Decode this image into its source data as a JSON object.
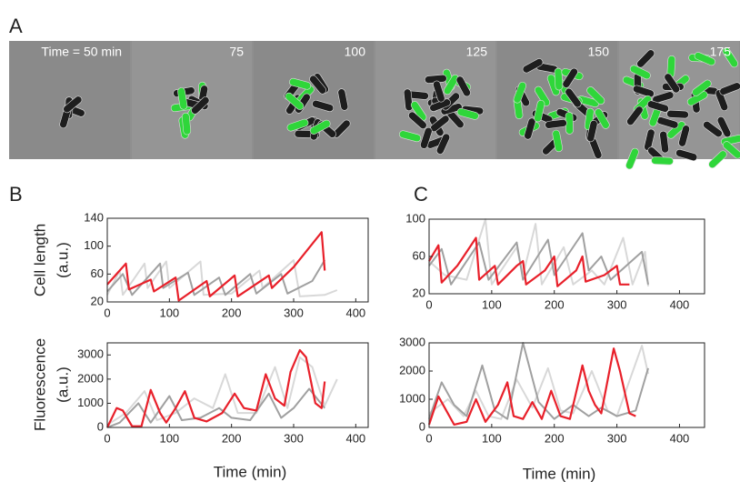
{
  "panel_labels": [
    "A",
    "B",
    "C"
  ],
  "panel_a": {
    "frames": [
      "Time = 50 min",
      "75",
      "100",
      "125",
      "150",
      "175"
    ]
  },
  "chart_data": [
    {
      "type": "line",
      "ylabel": [
        "Cell length",
        "(a.u.)"
      ],
      "xlim": [
        0,
        420
      ],
      "xticks": [
        0,
        100,
        200,
        300,
        400
      ],
      "ylim": [
        20,
        140
      ],
      "yticks": [
        20,
        60,
        100,
        140
      ],
      "series": [
        {
          "color": "#d8d8d8",
          "x": [
            0,
            20,
            25,
            60,
            65,
            95,
            100,
            150,
            155,
            200,
            245,
            250,
            300,
            310,
            350,
            370
          ],
          "values": [
            30,
            65,
            30,
            75,
            40,
            78,
            40,
            78,
            30,
            32,
            65,
            40,
            80,
            28,
            30,
            37
          ]
        },
        {
          "color": "#a0a0a0",
          "x": [
            0,
            25,
            40,
            85,
            90,
            130,
            140,
            180,
            190,
            230,
            240,
            280,
            290,
            330,
            350
          ],
          "values": [
            35,
            60,
            30,
            75,
            40,
            62,
            30,
            55,
            30,
            60,
            32,
            60,
            32,
            50,
            80
          ]
        },
        {
          "color": "#e8202a",
          "x": [
            0,
            30,
            35,
            70,
            75,
            110,
            115,
            160,
            165,
            205,
            210,
            260,
            265,
            300,
            345,
            350
          ],
          "values": [
            45,
            75,
            38,
            52,
            35,
            55,
            22,
            50,
            28,
            58,
            28,
            58,
            40,
            70,
            120,
            65
          ]
        }
      ]
    },
    {
      "type": "line",
      "ylabel": [
        "Fluorescence",
        "(a.u.)"
      ],
      "xlabel": "Time (min)",
      "xlim": [
        0,
        420
      ],
      "xticks": [
        0,
        100,
        200,
        300,
        400
      ],
      "ylim": [
        0,
        3500
      ],
      "yticks": [
        0,
        1000,
        2000,
        3000
      ],
      "series": [
        {
          "color": "#d8d8d8",
          "x": [
            0,
            30,
            60,
            80,
            110,
            140,
            170,
            190,
            210,
            240,
            270,
            290,
            310,
            330,
            350,
            370
          ],
          "values": [
            100,
            600,
            1500,
            300,
            600,
            1200,
            800,
            2200,
            600,
            600,
            2500,
            800,
            2900,
            2500,
            900,
            2000
          ]
        },
        {
          "color": "#a0a0a0",
          "x": [
            0,
            20,
            50,
            70,
            100,
            120,
            150,
            180,
            200,
            230,
            260,
            280,
            300,
            325,
            350
          ],
          "values": [
            0,
            200,
            1000,
            200,
            1300,
            300,
            400,
            800,
            400,
            300,
            1400,
            400,
            800,
            1600,
            800
          ]
        },
        {
          "color": "#e8202a",
          "x": [
            0,
            15,
            25,
            40,
            55,
            70,
            85,
            95,
            110,
            125,
            140,
            160,
            185,
            205,
            220,
            240,
            255,
            270,
            285,
            295,
            310,
            320,
            335,
            345,
            350
          ],
          "values": [
            0,
            800,
            700,
            50,
            50,
            1550,
            600,
            200,
            800,
            1500,
            400,
            250,
            600,
            1400,
            800,
            700,
            2200,
            1200,
            900,
            2300,
            3200,
            2900,
            1000,
            800,
            1900
          ]
        }
      ]
    },
    {
      "type": "line",
      "xlim": [
        0,
        440
      ],
      "xticks": [
        0,
        100,
        200,
        300,
        400
      ],
      "ylim": [
        20,
        100
      ],
      "yticks": [
        20,
        60,
        100
      ],
      "series": [
        {
          "color": "#d8d8d8",
          "x": [
            0,
            25,
            60,
            90,
            100,
            140,
            150,
            170,
            180,
            215,
            230,
            260,
            280,
            310,
            325,
            345,
            350
          ],
          "values": [
            55,
            40,
            35,
            100,
            30,
            70,
            40,
            95,
            30,
            70,
            30,
            45,
            30,
            80,
            30,
            65,
            28
          ]
        },
        {
          "color": "#a0a0a0",
          "x": [
            0,
            20,
            35,
            80,
            95,
            140,
            150,
            190,
            200,
            245,
            255,
            275,
            290,
            340,
            350
          ],
          "values": [
            50,
            68,
            30,
            75,
            35,
            75,
            35,
            78,
            40,
            85,
            45,
            60,
            35,
            65,
            30
          ]
        },
        {
          "color": "#e8202a",
          "x": [
            0,
            15,
            20,
            45,
            65,
            75,
            80,
            105,
            110,
            140,
            150,
            155,
            185,
            200,
            205,
            235,
            245,
            250,
            280,
            300,
            305,
            320
          ],
          "values": [
            55,
            72,
            32,
            50,
            70,
            80,
            35,
            50,
            30,
            50,
            55,
            30,
            45,
            60,
            28,
            45,
            60,
            33,
            40,
            50,
            30,
            30
          ]
        }
      ]
    },
    {
      "type": "line",
      "xlabel": "Time (min)",
      "xlim": [
        0,
        440
      ],
      "xticks": [
        0,
        100,
        200,
        300,
        400
      ],
      "ylim": [
        0,
        3000
      ],
      "yticks": [
        0,
        1000,
        2000,
        3000
      ],
      "series": [
        {
          "color": "#d8d8d8",
          "x": [
            0,
            30,
            55,
            75,
            95,
            115,
            140,
            165,
            190,
            210,
            230,
            260,
            285,
            300,
            340,
            350
          ],
          "values": [
            500,
            1000,
            400,
            1300,
            400,
            300,
            1700,
            700,
            2100,
            600,
            500,
            2000,
            600,
            400,
            2900,
            1900
          ]
        },
        {
          "color": "#a0a0a0",
          "x": [
            0,
            20,
            40,
            60,
            85,
            105,
            125,
            150,
            175,
            200,
            230,
            255,
            275,
            300,
            330,
            350
          ],
          "values": [
            300,
            1600,
            800,
            400,
            2200,
            600,
            300,
            3000,
            900,
            300,
            800,
            400,
            700,
            400,
            600,
            2100
          ]
        },
        {
          "color": "#e8202a",
          "x": [
            0,
            15,
            25,
            40,
            60,
            75,
            90,
            110,
            125,
            135,
            150,
            165,
            180,
            195,
            210,
            225,
            245,
            255,
            265,
            275,
            295,
            305,
            320,
            330
          ],
          "values": [
            100,
            1100,
            700,
            100,
            200,
            1000,
            200,
            800,
            1600,
            400,
            300,
            900,
            300,
            1300,
            400,
            300,
            2200,
            1300,
            800,
            500,
            2800,
            2000,
            500,
            400
          ]
        }
      ]
    }
  ]
}
